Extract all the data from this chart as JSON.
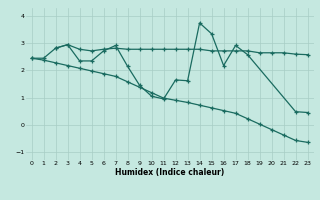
{
  "xlabel": "Humidex (Indice chaleur)",
  "bg_color": "#c5e8e0",
  "grid_color": "#a8cdc5",
  "line_color": "#1a6b60",
  "xlim": [
    -0.5,
    23.5
  ],
  "ylim": [
    -1.3,
    4.3
  ],
  "xticks": [
    0,
    1,
    2,
    3,
    4,
    5,
    6,
    7,
    8,
    9,
    10,
    11,
    12,
    13,
    14,
    15,
    16,
    17,
    18,
    19,
    20,
    21,
    22,
    23
  ],
  "yticks": [
    -1,
    0,
    1,
    2,
    3,
    4
  ],
  "line1_x": [
    0,
    1,
    2,
    3,
    4,
    5,
    6,
    7,
    8,
    9,
    10,
    11,
    12,
    13,
    14,
    15,
    16,
    17,
    18,
    19,
    20,
    21,
    22,
    23
  ],
  "line1_y": [
    2.45,
    2.45,
    2.82,
    2.95,
    2.78,
    2.72,
    2.78,
    2.82,
    2.78,
    2.78,
    2.78,
    2.78,
    2.78,
    2.78,
    2.78,
    2.72,
    2.72,
    2.72,
    2.72,
    2.65,
    2.65,
    2.65,
    2.6,
    2.58
  ],
  "line2_x": [
    2,
    3,
    4,
    5,
    6,
    7,
    8,
    9,
    10,
    11,
    12,
    13,
    14,
    15,
    16,
    17,
    18,
    22,
    23
  ],
  "line2_y": [
    2.82,
    2.95,
    2.35,
    2.35,
    2.72,
    2.92,
    2.15,
    1.45,
    1.05,
    0.95,
    1.65,
    1.62,
    3.75,
    3.35,
    2.18,
    2.92,
    2.58,
    0.48,
    0.45
  ],
  "line3_x": [
    0,
    1,
    2,
    3,
    4,
    5,
    6,
    7,
    8,
    9,
    10,
    11,
    12,
    13,
    14,
    15,
    16,
    17,
    18,
    19,
    20,
    21,
    22,
    23
  ],
  "line3_y": [
    2.45,
    2.38,
    2.28,
    2.18,
    2.08,
    1.98,
    1.88,
    1.78,
    1.58,
    1.38,
    1.18,
    0.98,
    0.9,
    0.82,
    0.72,
    0.62,
    0.52,
    0.42,
    0.22,
    0.02,
    -0.18,
    -0.38,
    -0.58,
    -0.65
  ]
}
